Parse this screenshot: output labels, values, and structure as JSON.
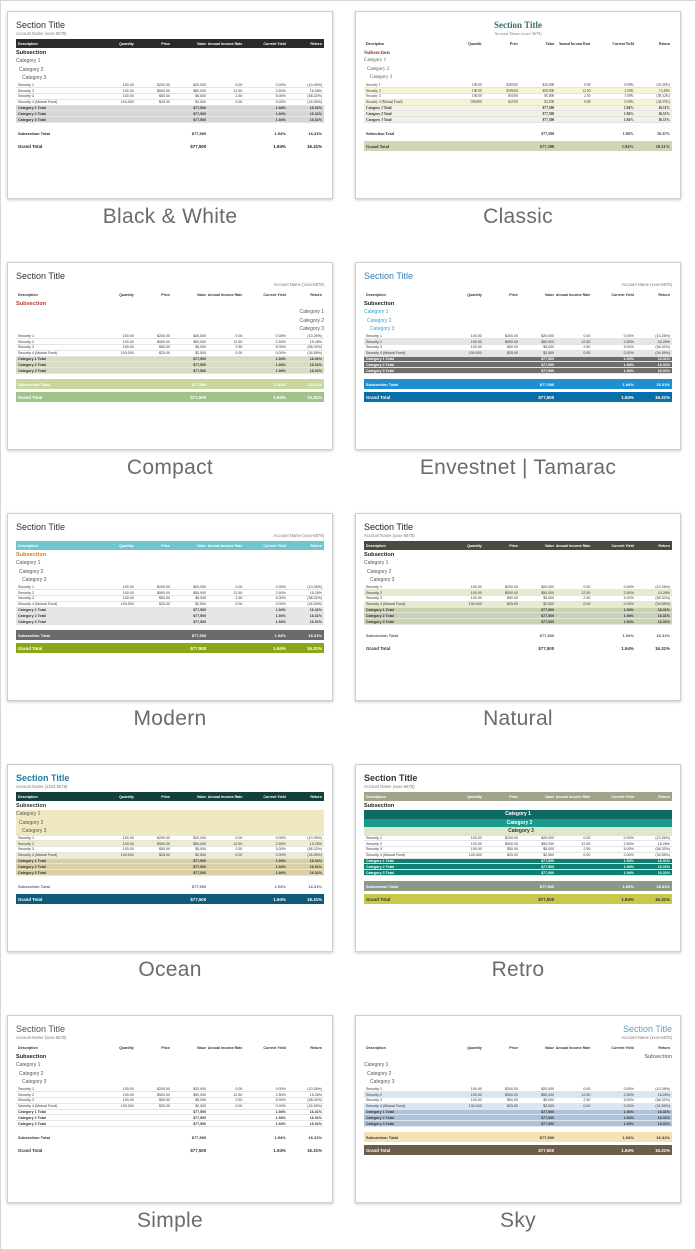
{
  "headers": [
    "Description",
    "Quantity",
    "Price",
    "Value",
    "Annual Income Rate",
    "Current Yield",
    "Return"
  ],
  "section_title": "Section Title",
  "account_name": "Account Name (xxxx-5678)",
  "account_name_ocean": "Account Name (1234-5678)",
  "subsection": "Subsection",
  "categories": [
    "Category 1",
    "Category 2",
    "Category 3"
  ],
  "securities": [
    [
      "Security 1",
      "100.00",
      "$200.00",
      "$20,000",
      "0.00",
      "0.00%",
      "(10.26%)"
    ],
    [
      "Security 2",
      "100.00",
      "$500.00",
      "$50,000",
      "12.50",
      "2.50%",
      "15.28%"
    ],
    [
      "Security 3",
      "100.00",
      "$50.00",
      "$5,000",
      "2.50",
      "5.00%",
      "(58.32%)"
    ],
    [
      "Security 4 (Mutual Fund)",
      "100.000",
      "$25.00",
      "$2,500",
      "0.00",
      "0.00%",
      "(34.55%)"
    ]
  ],
  "category_totals": [
    [
      "Category 1 Total",
      "",
      "",
      "$77,500",
      "",
      "1.94%",
      "16.31%"
    ],
    [
      "Category 2 Total",
      "",
      "",
      "$77,500",
      "",
      "1.94%",
      "16.31%"
    ],
    [
      "Category 3 Total",
      "",
      "",
      "$77,500",
      "",
      "1.94%",
      "16.31%"
    ]
  ],
  "subsection_total": [
    "Subsection Total",
    "",
    "",
    "$77,500",
    "",
    "1.94%",
    "16.31%"
  ],
  "grand_total": [
    "Grand Total",
    "",
    "",
    "$77,500",
    "",
    "1.94%",
    "16.31%"
  ],
  "themes": [
    {
      "name": "Black & White",
      "header_bg": "#2b2b2b",
      "header_fg": "#ffffff",
      "title_color": "#333333",
      "sub_color": "#222222",
      "cat_bg": "#d7d7d7",
      "subt_bg": "transparent",
      "subt_fg": "#222222",
      "grand_bg": "transparent",
      "grand_fg": "#222222",
      "stripe": "#ffffff"
    },
    {
      "name": "Classic",
      "header_bg": "transparent",
      "header_fg": "#333333",
      "title_color": "#3b6e6e",
      "sub_color": "#8b3a2b",
      "cat_bg": "#f1f1e6",
      "subt_bg": "transparent",
      "subt_fg": "#333333",
      "grand_bg": "#cdd7b6",
      "grand_fg": "#333333",
      "stripe": "#f6f3d8"
    },
    {
      "name": "Compact",
      "header_bg": "transparent",
      "header_fg": "#333333",
      "title_color": "#333333",
      "sub_color": "#b23a3a",
      "cat_bg": "#d8dcc4",
      "subt_bg": "#c8d89c",
      "subt_fg": "#ffffff",
      "grand_bg": "#9fc489",
      "grand_fg": "#ffffff",
      "stripe": "#ffffff"
    },
    {
      "name": "Envestnet | Tamarac",
      "header_bg": "transparent",
      "header_fg": "#333333",
      "title_color": "#2f7fbf",
      "sub_color": "#222222",
      "cat_bg": "#6e6e6e",
      "cat_fg": "#ffffff",
      "subt_bg": "#1f8fd0",
      "subt_fg": "#ffffff",
      "grand_bg": "#0a6fa8",
      "grand_fg": "#ffffff",
      "stripe": "#e6e6e6"
    },
    {
      "name": "Modern",
      "header_bg": "#6fc6cc",
      "header_fg": "#ffffff",
      "title_color": "#333333",
      "sub_color": "#e07b12",
      "cat_bg": "#e6e6e6",
      "subt_bg": "#6a6a6a",
      "subt_fg": "#ffffff",
      "grand_bg": "#88a81a",
      "grand_fg": "#ffffff",
      "stripe": "#ffffff"
    },
    {
      "name": "Natural",
      "header_bg": "#4a4a3e",
      "header_fg": "#ffffff",
      "title_color": "#222222",
      "sub_color": "#222222",
      "cat_bg": "#c9d3ad",
      "subt_bg": "transparent",
      "subt_fg": "#555555",
      "grand_bg": "transparent",
      "grand_fg": "#333333",
      "stripe": "#e5ecd0"
    },
    {
      "name": "Ocean",
      "header_bg": "#13403f",
      "header_fg": "#ffffff",
      "title_color": "#1f7f9a",
      "sub_color": "#333333",
      "cat_bg": "#d8cfa6",
      "subt_bg": "transparent",
      "subt_fg": "#666666",
      "grand_bg": "#0e5a7a",
      "grand_fg": "#ffffff",
      "stripe": "#f1eccf"
    },
    {
      "name": "Retro",
      "header_bg": "#a3a38a",
      "header_fg": "#ffffff",
      "title_color": "#333333",
      "sub_color": "#222222",
      "cat_bg": "#0f7f72",
      "cat_fg": "#ffffff",
      "subt_bg": "#8a9a8a",
      "subt_fg": "#ffffff",
      "grand_bg": "#c8c84a",
      "grand_fg": "#333333",
      "stripe": "#ffffff"
    },
    {
      "name": "Simple",
      "header_bg": "transparent",
      "header_fg": "#333333",
      "title_color": "#555555",
      "sub_color": "#222222",
      "cat_bg": "#ffffff",
      "subt_bg": "transparent",
      "subt_fg": "#333333",
      "grand_bg": "transparent",
      "grand_fg": "#333333",
      "stripe": "#ffffff"
    },
    {
      "name": "Sky",
      "header_bg": "transparent",
      "header_fg": "#333333",
      "title_color": "#5aa0c8",
      "sub_color": "#555555",
      "cat_bg": "#aac4e0",
      "subt_bg": "#f2e2b6",
      "subt_fg": "#333333",
      "grand_bg": "#6a5e4a",
      "grand_fg": "#ffffff",
      "stripe": "#dbe6f2"
    }
  ]
}
